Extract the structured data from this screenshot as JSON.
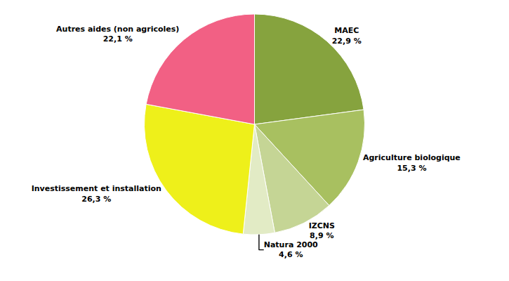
{
  "chart_data": {
    "type": "pie",
    "categories": [
      "MAEC",
      "Agriculture biologique",
      "IZCNS",
      "Natura 2000",
      "Investissement et installation",
      "Autres aides (non agricoles)"
    ],
    "values": [
      22.9,
      15.3,
      8.9,
      4.6,
      26.3,
      22.1
    ],
    "value_labels": [
      "22,9 %",
      "15,3 %",
      "8,9 %",
      "4,6 %",
      "26,3 %",
      "22,1 %"
    ],
    "colors": [
      "#86a33e",
      "#a8c060",
      "#c5d595",
      "#e2ebc5",
      "#eef01a",
      "#f26084"
    ],
    "data_labels": true
  }
}
